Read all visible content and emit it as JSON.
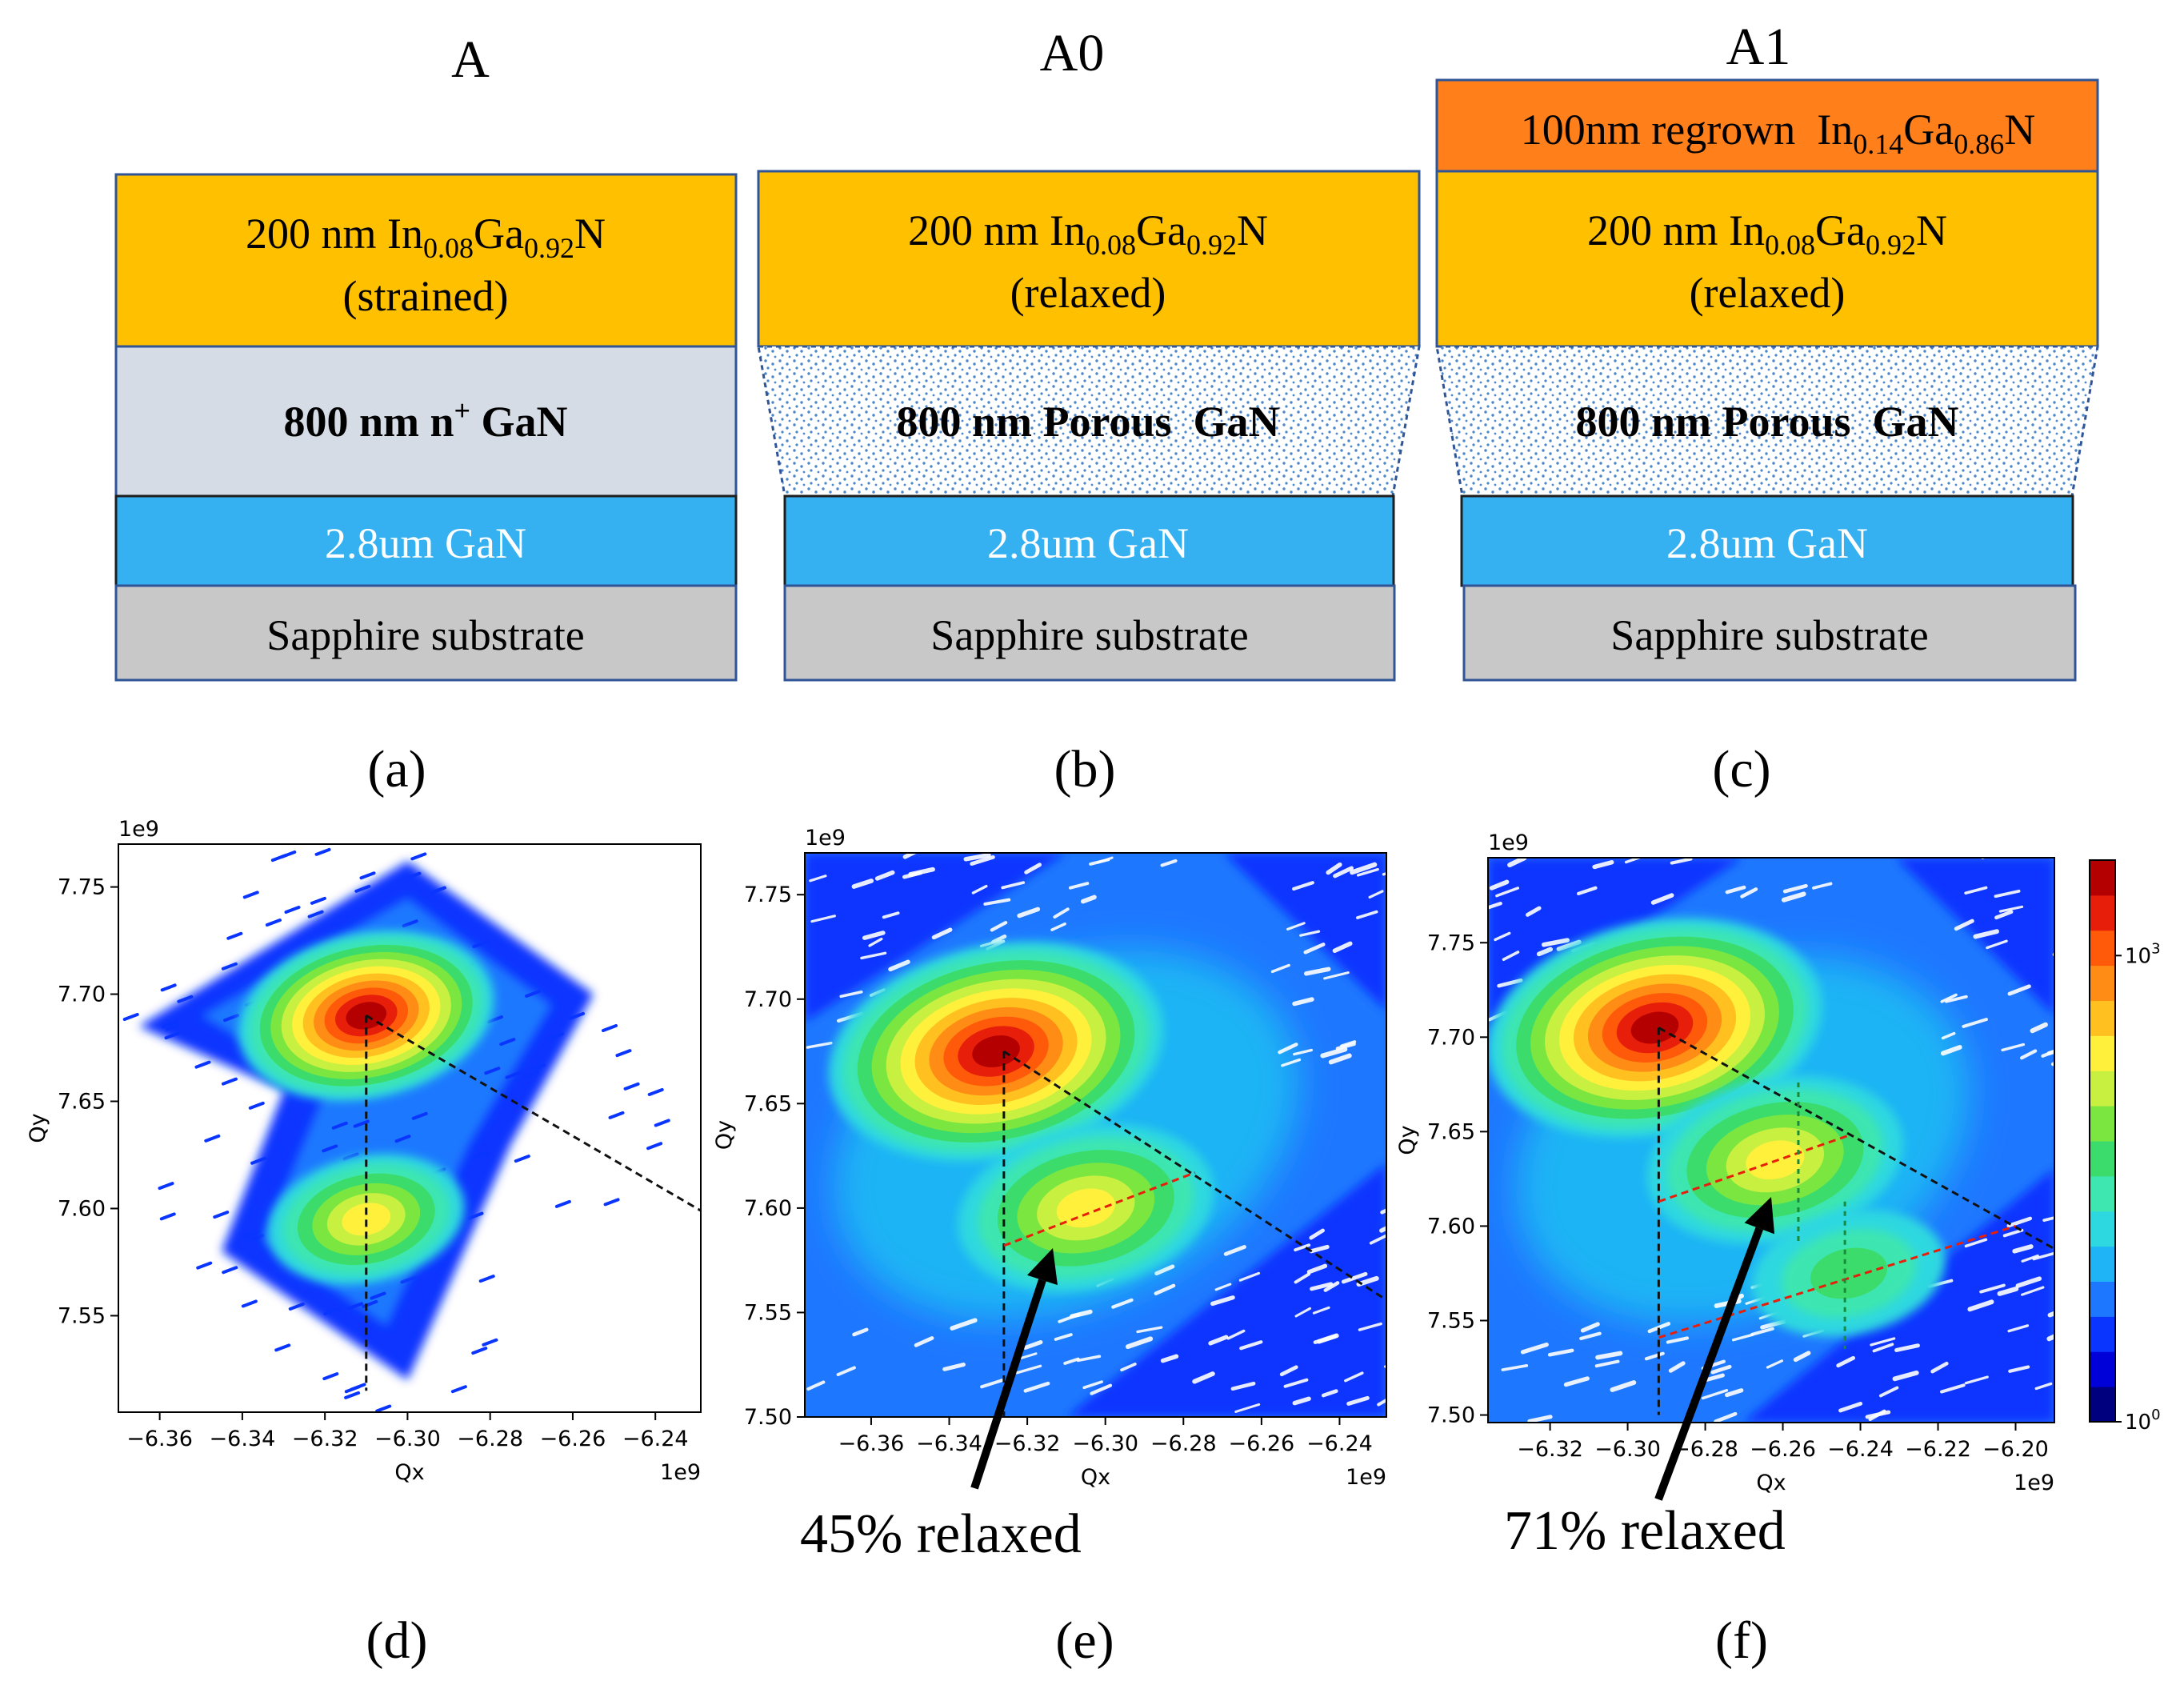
{
  "figure": {
    "structures": [
      {
        "id": "A",
        "label": "(a)",
        "layers": [
          {
            "kind": "ingan",
            "main": "200 nm In",
            "sub1": "0.08",
            "mid": "Ga",
            "sub2": "0.92",
            "tail": "N",
            "note": "(strained)"
          },
          {
            "kind": "gan_np",
            "main": "800 nm n",
            "sup": "+",
            "tail": " GaN"
          },
          {
            "kind": "gan",
            "text": "2.8um GaN"
          },
          {
            "kind": "substrate",
            "text": "Sapphire substrate"
          }
        ]
      },
      {
        "id": "A0",
        "label": "(b)",
        "layers": [
          {
            "kind": "ingan",
            "main": "200 nm In",
            "sub1": "0.08",
            "mid": "Ga",
            "sub2": "0.92",
            "tail": "N",
            "note": "(relaxed)"
          },
          {
            "kind": "porous",
            "text": "800 nm Porous  GaN"
          },
          {
            "kind": "gan",
            "text": "2.8um GaN"
          },
          {
            "kind": "substrate",
            "text": "Sapphire substrate"
          }
        ]
      },
      {
        "id": "A1",
        "label": "(c)",
        "layers": [
          {
            "kind": "regrown",
            "main": "100nm regrown  In",
            "sub1": "0.14",
            "mid": "Ga",
            "sub2": "0.86",
            "tail": "N"
          },
          {
            "kind": "ingan",
            "main": "200 nm In",
            "sub1": "0.08",
            "mid": "Ga",
            "sub2": "0.92",
            "tail": "N",
            "note": "(relaxed)"
          },
          {
            "kind": "porous",
            "text": "800 nm Porous  GaN"
          },
          {
            "kind": "gan",
            "text": "2.8um GaN"
          },
          {
            "kind": "substrate",
            "text": "Sapphire substrate"
          }
        ]
      }
    ],
    "colors": {
      "ingan": "#FFC000",
      "regrown": "#FF7F1A",
      "gan_np": "#D6DCE5",
      "porous_bg": "#FFFFFF",
      "porous_dot": "#4A86C8",
      "gan": "#35B0F0",
      "substrate": "#C8C8C8",
      "border": "#2F5597"
    }
  },
  "chart_data": [
    {
      "type": "heatmap",
      "panel": "(d)",
      "xlabel": "Qx",
      "ylabel": "Qy",
      "x_scale_label": "1e9",
      "y_scale_label": "1e9",
      "xlim": [
        -6.37,
        -6.229
      ],
      "ylim": [
        7.505,
        7.77
      ],
      "xticks": [
        "-6.36",
        "-6.34",
        "-6.32",
        "-6.30",
        "-6.28",
        "-6.26",
        "-6.24"
      ],
      "yticks": [
        "7.55",
        "7.60",
        "7.65",
        "7.70",
        "7.75"
      ],
      "peaks": [
        {
          "name": "InGaN",
          "qx": -6.31,
          "qy": 7.69,
          "intensity": "max"
        },
        {
          "name": "GaN",
          "qx": -6.31,
          "qy": 7.595,
          "intensity": "mid"
        }
      ],
      "guides": [
        {
          "style": "black-dashed",
          "points": [
            [
              -6.31,
              7.69
            ],
            [
              -6.31,
              7.515
            ]
          ]
        },
        {
          "style": "black-dashed",
          "points": [
            [
              -6.31,
              7.69
            ],
            [
              -6.229,
              7.599
            ]
          ]
        }
      ],
      "annotation": ""
    },
    {
      "type": "heatmap",
      "panel": "(e)",
      "xlabel": "Qx",
      "ylabel": "Qy",
      "x_scale_label": "1e9",
      "y_scale_label": "1e9",
      "xlim": [
        -6.377,
        -6.228
      ],
      "ylim": [
        7.5,
        7.77
      ],
      "xticks": [
        "-6.36",
        "-6.34",
        "-6.32",
        "-6.30",
        "-6.28",
        "-6.26",
        "-6.24"
      ],
      "yticks": [
        "7.50",
        "7.55",
        "7.60",
        "7.65",
        "7.70",
        "7.75"
      ],
      "peaks": [
        {
          "name": "GaN",
          "qx": -6.328,
          "qy": 7.675,
          "intensity": "max"
        },
        {
          "name": "InGaN",
          "qx": -6.305,
          "qy": 7.6,
          "intensity": "mid"
        }
      ],
      "guides": [
        {
          "style": "black-dashed",
          "points": [
            [
              -6.326,
              7.675
            ],
            [
              -6.326,
              7.5
            ]
          ]
        },
        {
          "style": "black-dashed",
          "points": [
            [
              -6.326,
              7.675
            ],
            [
              -6.228,
              7.556
            ]
          ]
        },
        {
          "style": "red-dashed",
          "points": [
            [
              -6.326,
              7.582
            ],
            [
              -6.277,
              7.617
            ]
          ]
        }
      ],
      "annotation": "45% relaxed"
    },
    {
      "type": "heatmap",
      "panel": "(f)",
      "xlabel": "Qx",
      "ylabel": "Qy",
      "x_scale_label": "1e9",
      "y_scale_label": "1e9",
      "xlim": [
        -6.336,
        -6.19
      ],
      "ylim": [
        7.496,
        7.795
      ],
      "xticks": [
        "-6.32",
        "-6.30",
        "-6.28",
        "-6.26",
        "-6.24",
        "-6.22",
        "-6.20"
      ],
      "yticks": [
        "7.50",
        "7.55",
        "7.60",
        "7.65",
        "7.70",
        "7.75"
      ],
      "peaks": [
        {
          "name": "GaN",
          "qx": -6.293,
          "qy": 7.705,
          "intensity": "max"
        },
        {
          "name": "InGaN",
          "qx": -6.262,
          "qy": 7.635,
          "intensity": "mid"
        },
        {
          "name": "regrown InGaN",
          "qx": -6.243,
          "qy": 7.575,
          "intensity": "low"
        }
      ],
      "guides": [
        {
          "style": "black-dashed",
          "points": [
            [
              -6.292,
              7.705
            ],
            [
              -6.292,
              7.5
            ]
          ]
        },
        {
          "style": "black-dashed",
          "points": [
            [
              -6.292,
              7.705
            ],
            [
              -6.19,
              7.588
            ]
          ]
        },
        {
          "style": "red-dashed",
          "points": [
            [
              -6.292,
              7.613
            ],
            [
              -6.243,
              7.648
            ]
          ]
        },
        {
          "style": "red-dashed",
          "points": [
            [
              -6.292,
              7.541
            ],
            [
              -6.2,
              7.6
            ]
          ]
        },
        {
          "style": "green-dashed",
          "points": [
            [
              -6.256,
              7.676
            ],
            [
              -6.256,
              7.59
            ]
          ]
        },
        {
          "style": "green-dashed",
          "points": [
            [
              -6.244,
              7.613
            ],
            [
              -6.244,
              7.535
            ]
          ]
        }
      ],
      "annotation": "71% relaxed"
    },
    {
      "type": "colorbar",
      "scale": "log",
      "tick_labels": [
        "10",
        "10"
      ],
      "tick_exponents": [
        "0",
        "3"
      ],
      "colors": [
        "#00007F",
        "#0000D8",
        "#0A35FF",
        "#1E78FF",
        "#1EB4F5",
        "#2ED8E0",
        "#3EE6B0",
        "#3CDC6C",
        "#7CE640",
        "#C8F040",
        "#FFF03C",
        "#FFC020",
        "#FF8C14",
        "#FF5A0A",
        "#E61E0A",
        "#B40000"
      ]
    }
  ],
  "panel_labels": [
    "(a)",
    "(b)",
    "(c)",
    "(d)",
    "(e)",
    "(f)"
  ]
}
